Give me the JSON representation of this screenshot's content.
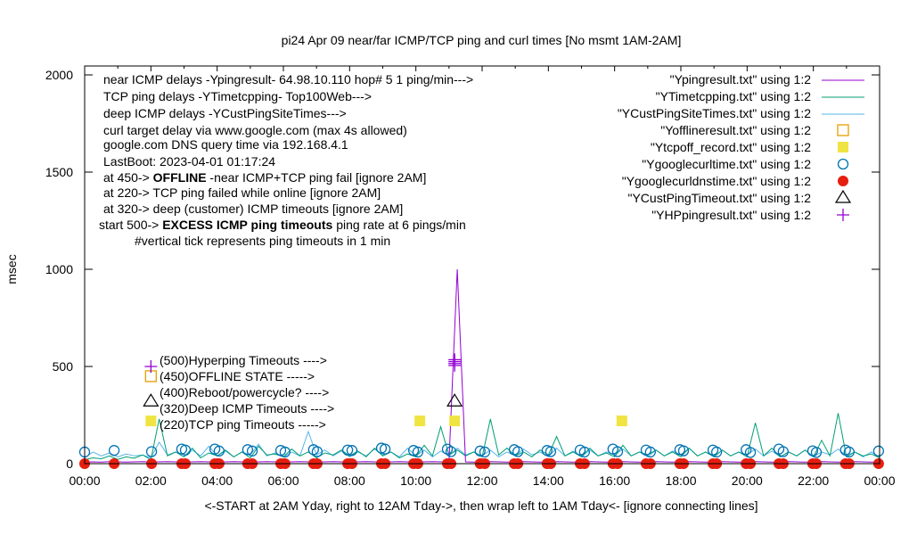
{
  "chart_data": {
    "type": "line",
    "title": "pi24 Apr 09  near/far ICMP/TCP ping and curl times [No msmt 1AM-2AM]",
    "xlabel": "<-START at 2AM Yday, right to 12AM Tday->, then wrap left to 1AM Tday<- [ignore connecting lines]",
    "ylabel": "msec",
    "xlim": [
      0,
      24
    ],
    "ylim": [
      0,
      2000
    ],
    "x_ticks": [
      "00:00",
      "02:00",
      "04:00",
      "06:00",
      "08:00",
      "10:00",
      "12:00",
      "14:00",
      "16:00",
      "18:00",
      "20:00",
      "22:00",
      "00:00"
    ],
    "y_ticks": [
      "0",
      "500",
      "1000",
      "1500",
      "2000"
    ],
    "annotations": [
      "near ICMP delays -Ypingresult- 64.98.10.110 hop# 5 1 ping/min--->",
      "TCP ping delays -YTimetcpping- Top100Web--->",
      "deep ICMP delays -YCustPingSiteTimes--->",
      "curl target delay via www.google.com (max 4s allowed)",
      "google.com DNS query time via 192.168.4.1",
      "LastBoot: 2023-04-01 01:17:24"
    ],
    "annotation_offline": {
      "pre": "at 450-> ",
      "bold": "OFFLINE",
      "post": " -near ICMP+TCP ping fail [ignore 2AM]"
    },
    "annotation_tcp": "at 220-> TCP ping failed while online [ignore 2AM]",
    "annotation_deep": "at 320-> deep (customer) ICMP timeouts [ignore 2AM]",
    "annotation_excess": {
      "pre": "start 500-> ",
      "bold": "EXCESS ICMP ping timeouts",
      "post": "  ping rate at 6 pings/min"
    },
    "annotation_tick": "#vertical tick represents ping timeouts in 1 min",
    "marker_key": [
      "(500)Hyperping Timeouts ---->",
      "(450)OFFLINE STATE ----->",
      "(400)Reboot/powercycle? ---->",
      "(320)Deep ICMP Timeouts ---->",
      "(220)TCP ping Timeouts ----->"
    ],
    "legend": {
      "placement": "top-right",
      "entries": [
        {
          "label": "\"Ypingresult.txt\" using 1:2",
          "style": "line",
          "color": "#9400d3"
        },
        {
          "label": "\"YTimetcpping.txt\" using 1:2",
          "style": "line",
          "color": "#009e73"
        },
        {
          "label": "\"YCustPingSiteTimes.txt\" using 1:2",
          "style": "line",
          "color": "#56b4e9"
        },
        {
          "label": "\"Yofflineresult.txt\" using 1:2",
          "style": "open-square",
          "color": "#e69f00"
        },
        {
          "label": "\"Ytcpoff_record.txt\" using 1:2",
          "style": "filled-square",
          "color": "#f0e442"
        },
        {
          "label": "\"Ygooglecurltime.txt\" using 1:2",
          "style": "open-circle",
          "color": "#0072b2"
        },
        {
          "label": "\"Ygooglecurldnstime.txt\" using 1:2",
          "style": "filled-circle",
          "color": "#e51e10"
        },
        {
          "label": "\"YCustPingTimeout.txt\" using 1:2",
          "style": "open-triangle",
          "color": "#000000"
        },
        {
          "label": "\"YHPpingresult.txt\" using 1:2",
          "style": "plus",
          "color": "#9400d3"
        }
      ]
    },
    "series": {
      "near_ping": {
        "step": 0.25,
        "values": [
          8,
          9,
          8,
          10,
          9,
          8,
          9,
          10,
          8,
          9,
          10,
          9,
          8,
          9,
          10,
          9,
          8,
          9,
          10,
          9,
          8,
          9,
          10,
          9,
          8,
          9,
          10,
          9,
          8,
          9,
          10,
          9,
          8,
          9,
          10,
          9,
          8,
          9,
          10,
          9,
          8,
          9,
          10,
          9,
          9,
          1000,
          9,
          8,
          9,
          10,
          9,
          8,
          9,
          10,
          9,
          8,
          9,
          10,
          9,
          8,
          9,
          10,
          9,
          8,
          9,
          10,
          9,
          8,
          9,
          10,
          9,
          8,
          9,
          10,
          9,
          8,
          9,
          10,
          9,
          8,
          9,
          10,
          9,
          8,
          9,
          10,
          9,
          8,
          9,
          10,
          9,
          8,
          9,
          10,
          9,
          8,
          9
        ]
      },
      "tcp_ping": {
        "step": 0.25,
        "values": [
          20,
          30,
          25,
          40,
          22,
          35,
          28,
          45,
          20,
          230,
          40,
          60,
          35,
          80,
          30,
          55,
          40,
          70,
          35,
          60,
          30,
          90,
          45,
          50,
          35,
          75,
          40,
          60,
          30,
          55,
          45,
          70,
          40,
          65,
          35,
          80,
          40,
          60,
          30,
          50,
          35,
          95,
          40,
          190,
          45,
          70,
          40,
          60,
          35,
          230,
          45,
          80,
          40,
          60,
          35,
          70,
          45,
          140,
          40,
          60,
          35,
          80,
          40,
          55,
          35,
          95,
          40,
          60,
          45,
          70,
          40,
          60,
          35,
          80,
          40,
          60,
          35,
          70,
          40,
          60,
          35,
          210,
          40,
          80,
          35,
          60,
          40,
          70,
          35,
          120,
          40,
          260,
          35,
          60,
          40,
          50,
          30
        ]
      },
      "cust_ping": {
        "step": 0.25,
        "values": [
          30,
          60,
          40,
          55,
          35,
          50,
          40,
          45,
          30,
          110,
          45,
          60,
          35,
          70,
          40,
          90,
          40,
          65,
          35,
          60,
          45,
          100,
          40,
          55,
          35,
          60,
          40,
          165,
          45,
          70,
          40,
          65,
          35,
          60,
          40,
          75,
          45,
          60,
          35,
          80,
          40,
          70,
          35,
          65,
          40,
          80,
          45,
          60,
          40,
          70,
          35,
          60,
          40,
          75,
          45,
          60,
          35,
          80,
          40,
          65,
          35,
          70,
          40,
          60,
          45,
          75,
          40,
          60,
          35,
          70,
          40,
          65,
          45,
          80,
          40,
          60,
          35,
          70,
          40,
          60,
          45,
          75,
          40,
          65,
          35,
          60,
          40,
          70,
          35,
          60,
          45,
          75,
          40,
          60,
          35,
          60,
          30
        ]
      },
      "curl_time": {
        "x": [
          0,
          0.89,
          2.02,
          2.93,
          3.04,
          3.93,
          4.06,
          4.92,
          5.06,
          5.92,
          6.05,
          6.91,
          7.02,
          7.94,
          8.07,
          8.96,
          9.07,
          9.93,
          10.06,
          10.95,
          11.06,
          11.94,
          12.08,
          12.97,
          13.08,
          13.96,
          14.07,
          14.96,
          15.09,
          15.95,
          16.09,
          16.95,
          17.08,
          17.97,
          18.08,
          18.97,
          19.08,
          19.97,
          20.1,
          20.96,
          21.09,
          21.98,
          22.09,
          22.97,
          23.08,
          23.97
        ],
        "y": [
          60,
          68,
          62,
          75,
          70,
          75,
          65,
          72,
          65,
          68,
          60,
          72,
          62,
          70,
          68,
          80,
          75,
          68,
          60,
          75,
          62,
          65,
          60,
          72,
          62,
          68,
          62,
          70,
          60,
          75,
          62,
          70,
          60,
          72,
          66,
          70,
          60,
          72,
          58,
          75,
          62,
          66,
          58,
          70,
          60,
          65
        ]
      },
      "dns_time": {
        "x": [
          0,
          0.89,
          2.02,
          2.93,
          3.04,
          3.93,
          4.06,
          4.92,
          5.06,
          5.92,
          6.05,
          6.91,
          7.02,
          7.94,
          8.07,
          8.96,
          9.07,
          9.93,
          10.06,
          10.95,
          11.06,
          11.94,
          12.08,
          12.97,
          13.08,
          13.96,
          14.07,
          14.96,
          15.09,
          15.95,
          16.09,
          16.95,
          17.08,
          17.97,
          18.08,
          18.97,
          19.08,
          19.97,
          20.1,
          20.96,
          21.09,
          21.98,
          22.09,
          22.97,
          23.08,
          23.97
        ],
        "y": [
          0,
          0,
          0,
          0,
          0,
          0,
          0,
          0,
          0,
          0,
          0,
          0,
          0,
          0,
          0,
          0,
          0,
          0,
          0,
          0,
          0,
          0,
          0,
          0,
          0,
          0,
          0,
          0,
          0,
          0,
          0,
          0,
          0,
          0,
          0,
          0,
          0,
          0,
          0,
          0,
          0,
          0,
          0,
          0,
          0,
          0
        ]
      },
      "offline": {
        "x": [
          2.0
        ],
        "y": [
          450
        ]
      },
      "tcp_off": {
        "x": [
          2.0,
          10.12,
          11.17,
          16.22
        ],
        "y": [
          220,
          220,
          220,
          220
        ]
      },
      "cust_timeout": {
        "x": [
          2.0,
          11.17
        ],
        "y": [
          320,
          320
        ]
      },
      "hp_ping": {
        "x": [
          2.0,
          11.17,
          11.17,
          11.17,
          11.17
        ],
        "y": [
          500,
          505,
          515,
          525,
          535
        ]
      }
    }
  }
}
